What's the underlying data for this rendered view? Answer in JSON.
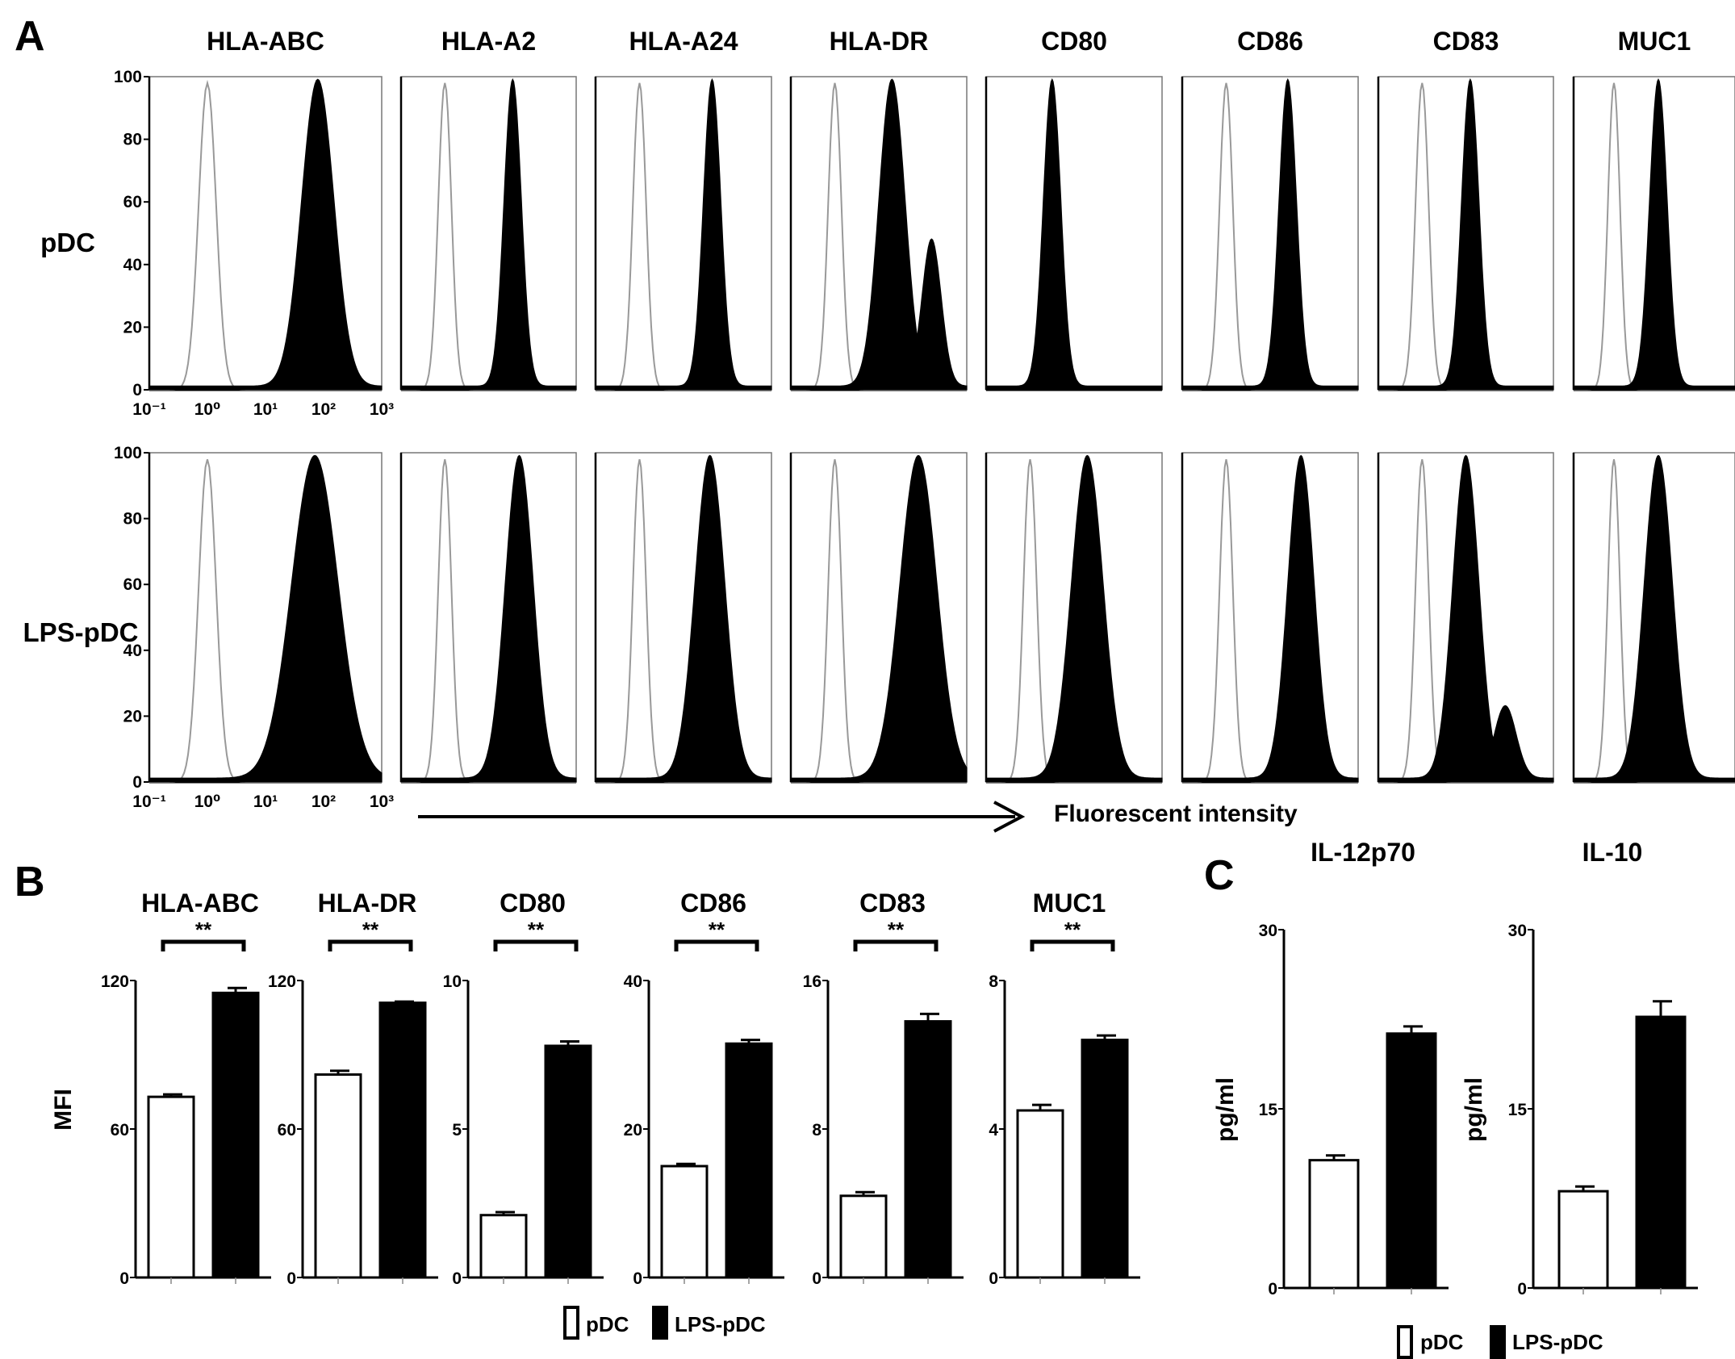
{
  "figure": {
    "panel_labels": [
      "A",
      "B",
      "C"
    ],
    "fluorescent_label": "Fluorescent intensity"
  },
  "chart_data": [
    {
      "type": "histogram",
      "panel": "A",
      "markers": [
        "HLA-ABC",
        "HLA-A2",
        "HLA-A24",
        "HLA-DR",
        "CD80",
        "CD86",
        "CD83",
        "MUC1"
      ],
      "rows": [
        "pDC",
        "LPS-pDC"
      ],
      "yticks": [
        "0",
        "20",
        "40",
        "60",
        "80",
        "100"
      ],
      "xticks": [
        "10⁻¹",
        "10⁰",
        "10¹",
        "10²",
        "10³"
      ],
      "ylim": [
        0,
        100
      ],
      "xlim_log10": [
        -1,
        3
      ],
      "xlabel": "Fluorescent intensity",
      "isotype_peak_log10": 0.0,
      "peaks": {
        "pDC": {
          "HLA-ABC": {
            "center": 1.9,
            "width": 0.28
          },
          "HLA-A2": {
            "center": 1.55,
            "width": 0.2
          },
          "HLA-A24": {
            "center": 1.65,
            "width": 0.2
          },
          "HLA-DR": {
            "center": 1.3,
            "width": 0.3,
            "second": {
              "center": 2.2,
              "width": 0.22,
              "height": 47
            }
          },
          "CD80": {
            "center": 0.5,
            "width": 0.2
          },
          "CD86": {
            "center": 1.4,
            "width": 0.2
          },
          "CD83": {
            "center": 1.1,
            "width": 0.2
          },
          "MUC1": {
            "center": 1.1,
            "width": 0.22
          }
        },
        "LPS-pDC": {
          "HLA-ABC": {
            "center": 1.85,
            "width": 0.4
          },
          "HLA-A2": {
            "center": 1.7,
            "width": 0.32
          },
          "HLA-A24": {
            "center": 1.6,
            "width": 0.34
          },
          "HLA-DR": {
            "center": 1.9,
            "width": 0.42
          },
          "CD80": {
            "center": 1.3,
            "width": 0.36
          },
          "CD86": {
            "center": 1.7,
            "width": 0.3
          },
          "CD83": {
            "center": 1.0,
            "width": 0.3,
            "second": {
              "center": 1.9,
              "width": 0.25,
              "height": 22
            }
          },
          "MUC1": {
            "center": 1.1,
            "width": 0.35
          }
        }
      },
      "colors": {
        "isotype": "#999999",
        "stained": "#000000"
      }
    },
    {
      "type": "bar",
      "panel": "B",
      "ylabel": "MFI",
      "series": [
        {
          "name": "pDC",
          "color": "#ffffff"
        },
        {
          "name": "LPS-pDC",
          "color": "#000000"
        }
      ],
      "significance": "**",
      "charts": [
        {
          "title": "HLA-ABC",
          "ylim": [
            0,
            120
          ],
          "yticks": [
            "0",
            "60",
            "120"
          ],
          "values": [
            73,
            115
          ],
          "errors": [
            1,
            2
          ]
        },
        {
          "title": "HLA-DR",
          "ylim": [
            0,
            120
          ],
          "yticks": [
            "0",
            "60",
            "120"
          ],
          "values": [
            82,
            111
          ],
          "errors": [
            1.5,
            0.5
          ]
        },
        {
          "title": "CD80",
          "ylim": [
            0,
            10
          ],
          "yticks": [
            "0",
            "5",
            "10"
          ],
          "values": [
            2.1,
            7.8
          ],
          "errors": [
            0.1,
            0.15
          ]
        },
        {
          "title": "CD86",
          "ylim": [
            0,
            40
          ],
          "yticks": [
            "0",
            "20",
            "40"
          ],
          "values": [
            15,
            31.5
          ],
          "errors": [
            0.3,
            0.5
          ]
        },
        {
          "title": "CD83",
          "ylim": [
            0,
            16
          ],
          "yticks": [
            "0",
            "8",
            "16"
          ],
          "values": [
            4.4,
            13.8
          ],
          "errors": [
            0.2,
            0.4
          ]
        },
        {
          "title": "MUC1",
          "ylim": [
            0,
            8
          ],
          "yticks": [
            "0",
            "4",
            "8"
          ],
          "values": [
            4.5,
            6.4
          ],
          "errors": [
            0.15,
            0.12
          ]
        }
      ]
    },
    {
      "type": "bar",
      "panel": "C",
      "ylabel": "pg/ml",
      "series": [
        {
          "name": "pDC",
          "color": "#ffffff"
        },
        {
          "name": "LPS-pDC",
          "color": "#000000"
        }
      ],
      "charts": [
        {
          "title": "IL-12p70",
          "ylim": [
            0,
            30
          ],
          "yticks": [
            "0",
            "15",
            "30"
          ],
          "values": [
            10.7,
            21.3
          ],
          "errors": [
            0.4,
            0.6
          ]
        },
        {
          "title": "IL-10",
          "ylim": [
            0,
            30
          ],
          "yticks": [
            "0",
            "15",
            "30"
          ],
          "values": [
            8.1,
            22.7
          ],
          "errors": [
            0.4,
            1.3
          ]
        }
      ]
    }
  ]
}
